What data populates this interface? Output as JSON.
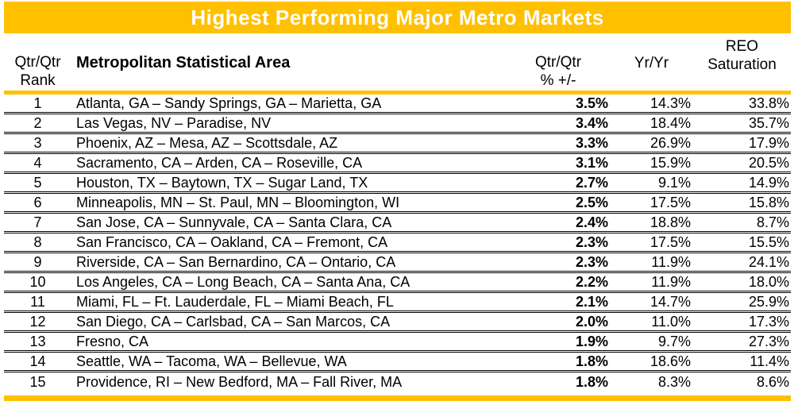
{
  "title": "Highest Performing Major Metro Markets",
  "colors": {
    "accent_gold": "#FFC000",
    "title_text": "#FFFFFF",
    "body_text": "#000000"
  },
  "header": {
    "rank_line1": "Qtr/Qtr",
    "rank_line2": "Rank",
    "msa": "Metropolitan Statistical Area",
    "qtr_line1": "Qtr/Qtr",
    "qtr_line2": "% +/-",
    "yr": "Yr/Yr",
    "reo_line1": "REO",
    "reo_line2": "Saturation"
  },
  "chart_data": {
    "type": "table",
    "title": "Highest Performing Major Metro Markets",
    "columns": [
      "Qtr/Qtr Rank",
      "Metropolitan Statistical Area",
      "Qtr/Qtr % +/-",
      "Yr/Yr",
      "REO Saturation"
    ],
    "rows": [
      [
        "1",
        "Atlanta, GA – Sandy Springs, GA – Marietta, GA",
        "3.5%",
        "14.3%",
        "33.8%"
      ],
      [
        "2",
        "Las Vegas, NV – Paradise, NV",
        "3.4%",
        "18.4%",
        "35.7%"
      ],
      [
        "3",
        "Phoenix, AZ – Mesa, AZ – Scottsdale, AZ",
        "3.3%",
        "26.9%",
        "17.9%"
      ],
      [
        "4",
        "Sacramento, CA – Arden, CA – Roseville, CA",
        "3.1%",
        "15.9%",
        "20.5%"
      ],
      [
        "5",
        "Houston, TX – Baytown, TX – Sugar Land, TX",
        "2.7%",
        "9.1%",
        "14.9%"
      ],
      [
        "6",
        "Minneapolis, MN – St. Paul, MN – Bloomington, WI",
        "2.5%",
        "17.5%",
        "15.8%"
      ],
      [
        "7",
        "San Jose, CA – Sunnyvale, CA – Santa Clara, CA",
        "2.4%",
        "18.8%",
        "8.7%"
      ],
      [
        "8",
        "San Francisco, CA – Oakland, CA – Fremont, CA",
        "2.3%",
        "17.5%",
        "15.5%"
      ],
      [
        "9",
        "Riverside, CA – San Bernardino, CA – Ontario, CA",
        "2.3%",
        "11.9%",
        "24.1%"
      ],
      [
        "10",
        "Los Angeles, CA – Long Beach, CA – Santa Ana, CA",
        "2.2%",
        "11.9%",
        "18.0%"
      ],
      [
        "11",
        "Miami, FL – Ft. Lauderdale, FL – Miami Beach, FL",
        "2.1%",
        "14.7%",
        "25.9%"
      ],
      [
        "12",
        "San Diego, CA – Carlsbad, CA – San Marcos, CA",
        "2.0%",
        "11.0%",
        "17.3%"
      ],
      [
        "13",
        "Fresno, CA",
        "1.9%",
        "9.7%",
        "27.3%"
      ],
      [
        "14",
        "Seattle, WA – Tacoma, WA – Bellevue, WA",
        "1.8%",
        "18.6%",
        "11.4%"
      ],
      [
        "15",
        "Providence, RI – New Bedford, MA – Fall River, MA",
        "1.8%",
        "8.3%",
        "8.6%"
      ]
    ]
  }
}
